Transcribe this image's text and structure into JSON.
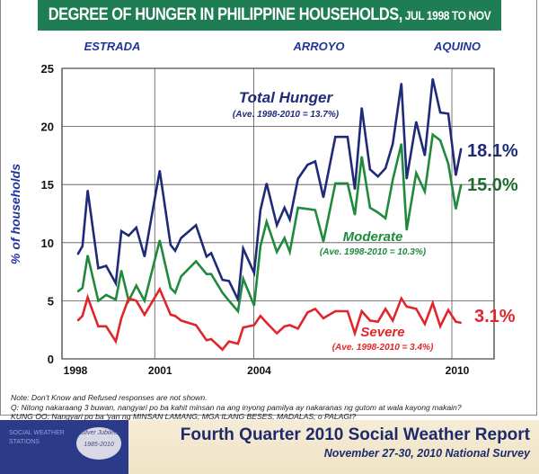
{
  "header": {
    "title": "DEGREE OF HUNGER IN PHILIPPINE HOUSEHOLDS,",
    "title_sub": " JUL 1998 TO NOV 2010"
  },
  "eras": [
    "ESTRADA",
    "ARROYO",
    "AQUINO"
  ],
  "notes": [
    "Note: Don't Know and Refused responses are not shown.",
    "Q: Nitong nakaraang 3 buwan, nangyari po ba kahit minsan na ang inyong pamilya ay nakaranas ng gutom at wala kayong makain?",
    "KUNG OO: Nangyari po ba 'yan ng MINSAN LAMANG, MGA ILANG BESES, MADALAS, o PALAGI?"
  ],
  "footer": {
    "title": "Fourth Quarter 2010 Social Weather Report",
    "subtitle": "November 27-30, 2010 National Survey",
    "logo_text": "SOCIAL WEATHER STATIONS",
    "logo_badge": "Silver Jubilee 1985-2010"
  },
  "chart_data": {
    "type": "line",
    "title": "DEGREE OF HUNGER IN PHILIPPINE HOUSEHOLDS, JUL 1998 TO NOV 2010",
    "ylabel": "% of households",
    "xlabel": "",
    "ylim": [
      0,
      25
    ],
    "yticks": [
      "0",
      "5",
      "10",
      "15",
      "20",
      "25"
    ],
    "xticks": [
      "1998",
      "2001",
      "2004",
      "2010"
    ],
    "grid": true,
    "x": [
      1998.67,
      1998.81,
      1998.97,
      1999.29,
      1999.53,
      1999.82,
      1999.99,
      2000.21,
      2000.44,
      2000.69,
      2001.15,
      2001.48,
      2001.62,
      2001.8,
      2002.25,
      2002.57,
      2002.71,
      2003.05,
      2003.25,
      2003.52,
      2003.68,
      2004.01,
      2004.2,
      2004.39,
      2004.7,
      2004.93,
      2005.09,
      2005.34,
      2005.63,
      2005.86,
      2006.11,
      2006.47,
      2006.84,
      2007.06,
      2007.27,
      2007.52,
      2007.76,
      2007.99,
      2008.21,
      2008.47,
      2008.63,
      2008.92,
      2009.18,
      2009.42,
      2009.65,
      2009.89,
      2010.12,
      2010.28
    ],
    "series": [
      {
        "name": "Total Hunger",
        "note": "(Ave. 1998-2010 = 13.7%)",
        "end_label": "18.1%",
        "color": "#1f2b78",
        "values": [
          9.0,
          9.7,
          14.5,
          7.8,
          8.0,
          6.5,
          11.0,
          10.6,
          11.3,
          8.8,
          16.2,
          9.8,
          9.3,
          10.4,
          11.5,
          8.8,
          9.1,
          6.8,
          6.7,
          5.1,
          9.5,
          7.4,
          12.8,
          15.1,
          11.5,
          13.0,
          12.0,
          15.5,
          16.7,
          17.0,
          13.9,
          19.1,
          19.1,
          14.6,
          21.6,
          16.3,
          15.7,
          16.4,
          18.5,
          23.7,
          15.5,
          20.4,
          17.5,
          24.1,
          21.2,
          21.1,
          15.8,
          18.1
        ]
      },
      {
        "name": "Moderate",
        "note": "(Ave. 1998-2010 = 10.3%)",
        "end_label": "15.0%",
        "color": "#1f8a3c",
        "values": [
          5.8,
          6.1,
          8.9,
          5.0,
          5.5,
          5.1,
          7.6,
          5.0,
          6.3,
          5.0,
          10.2,
          6.1,
          5.7,
          7.1,
          8.4,
          7.3,
          7.3,
          5.7,
          5.0,
          4.1,
          6.9,
          4.6,
          9.7,
          11.8,
          9.2,
          10.4,
          9.2,
          13.0,
          12.9,
          12.8,
          10.1,
          15.1,
          15.1,
          12.4,
          17.4,
          13.0,
          12.6,
          12.1,
          15.4,
          18.5,
          11.1,
          16.0,
          14.4,
          19.3,
          18.8,
          16.8,
          12.9,
          15.0
        ]
      },
      {
        "name": "Severe",
        "note": "(Ave. 1998-2010 = 3.4%)",
        "end_label": "3.1%",
        "color": "#e0262b",
        "values": [
          3.3,
          3.7,
          5.3,
          2.8,
          2.8,
          1.5,
          3.5,
          5.2,
          5.0,
          3.8,
          6.0,
          3.8,
          3.7,
          3.3,
          2.9,
          1.6,
          1.7,
          0.8,
          1.5,
          1.3,
          2.7,
          2.9,
          3.7,
          3.1,
          2.2,
          2.8,
          2.9,
          2.6,
          4.0,
          4.3,
          3.5,
          4.1,
          4.1,
          2.2,
          4.1,
          3.3,
          3.2,
          4.3,
          3.3,
          5.2,
          4.5,
          4.3,
          3.0,
          4.8,
          2.8,
          4.2,
          3.2,
          3.1
        ]
      }
    ]
  }
}
